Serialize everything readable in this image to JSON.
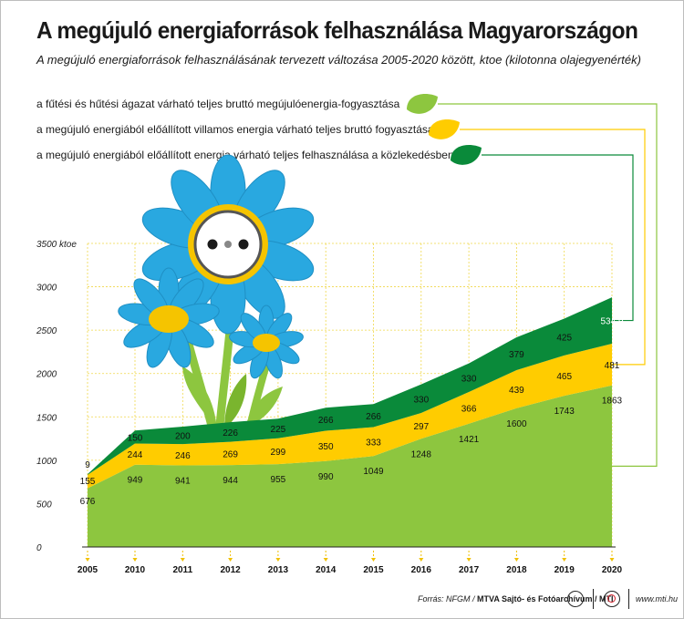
{
  "title": "A megújuló energiaforrások felhasználása Magyarországon",
  "subtitle": "A megújuló energiaforrások felhasználásának tervezett változása 2005-2020 között, ktoe (kilotonna olajegyenérték)",
  "footer": {
    "source_prefix": "Forrás: NFGM / ",
    "source_bold": "MTVA Sajtó- és Fotóarchívum / MTI",
    "url": "www.mti.hu"
  },
  "chart_data": {
    "type": "area",
    "stacked": true,
    "x": [
      "2005",
      "2010",
      "2011",
      "2012",
      "2013",
      "2014",
      "2015",
      "2016",
      "2017",
      "2018",
      "2019",
      "2020"
    ],
    "ylim": [
      0,
      3500
    ],
    "yticks": [
      0,
      500,
      1000,
      1500,
      2000,
      2500,
      3000,
      3500
    ],
    "ytick_labels": [
      "0",
      "500",
      "1000",
      "1500",
      "2000",
      "2500",
      "3000",
      "3500 ktoe"
    ],
    "grid": true,
    "series": [
      {
        "name": "a fűtési és hűtési ágazat várható teljes bruttó megújulóenergia-fogyasztása",
        "color": "#8dc63f",
        "values": [
          676,
          949,
          941,
          944,
          955,
          990,
          1049,
          1248,
          1421,
          1600,
          1743,
          1863
        ],
        "labels": [
          "676",
          "949",
          "941",
          "944",
          "955",
          "990",
          "1049",
          "1248",
          "1421",
          "1600",
          "1743",
          "1863"
        ]
      },
      {
        "name": "a megújuló energiából előállított villamos energia várható teljes bruttó fogyasztása",
        "color": "#ffcc00",
        "values": [
          155,
          244,
          246,
          269,
          299,
          350,
          333,
          297,
          366,
          439,
          465,
          481
        ],
        "labels": [
          "155",
          "244",
          "246",
          "269",
          "299",
          "350",
          "333",
          "297",
          "366",
          "439",
          "465",
          "481"
        ]
      },
      {
        "name": "a megújuló energiából előállított energia várható teljes felhasználása a közlekedésben",
        "color": "#0a8a3a",
        "values": [
          9,
          150,
          200,
          226,
          225,
          266,
          266,
          330,
          330,
          379,
          425,
          534.9
        ],
        "labels": [
          "9",
          "150",
          "200",
          "226",
          "225",
          "266",
          "266",
          "330",
          "330",
          "379",
          "425",
          "534,9"
        ]
      }
    ]
  }
}
